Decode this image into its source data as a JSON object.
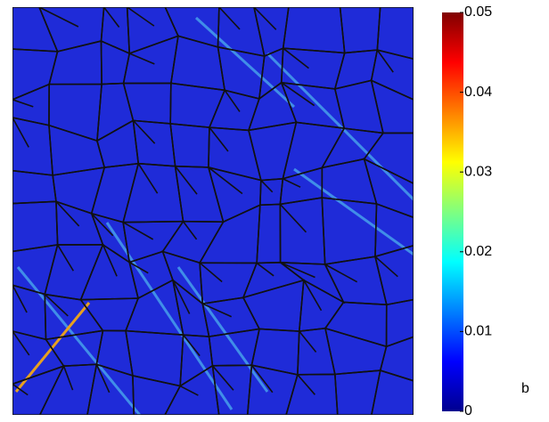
{
  "chart_data": {
    "type": "heatmap",
    "panel_label": "b",
    "clim": [
      0,
      0.05
    ],
    "cticks": [
      0,
      0.01,
      0.02,
      0.03,
      0.04,
      0.05
    ],
    "colormap": "jet"
  }
}
